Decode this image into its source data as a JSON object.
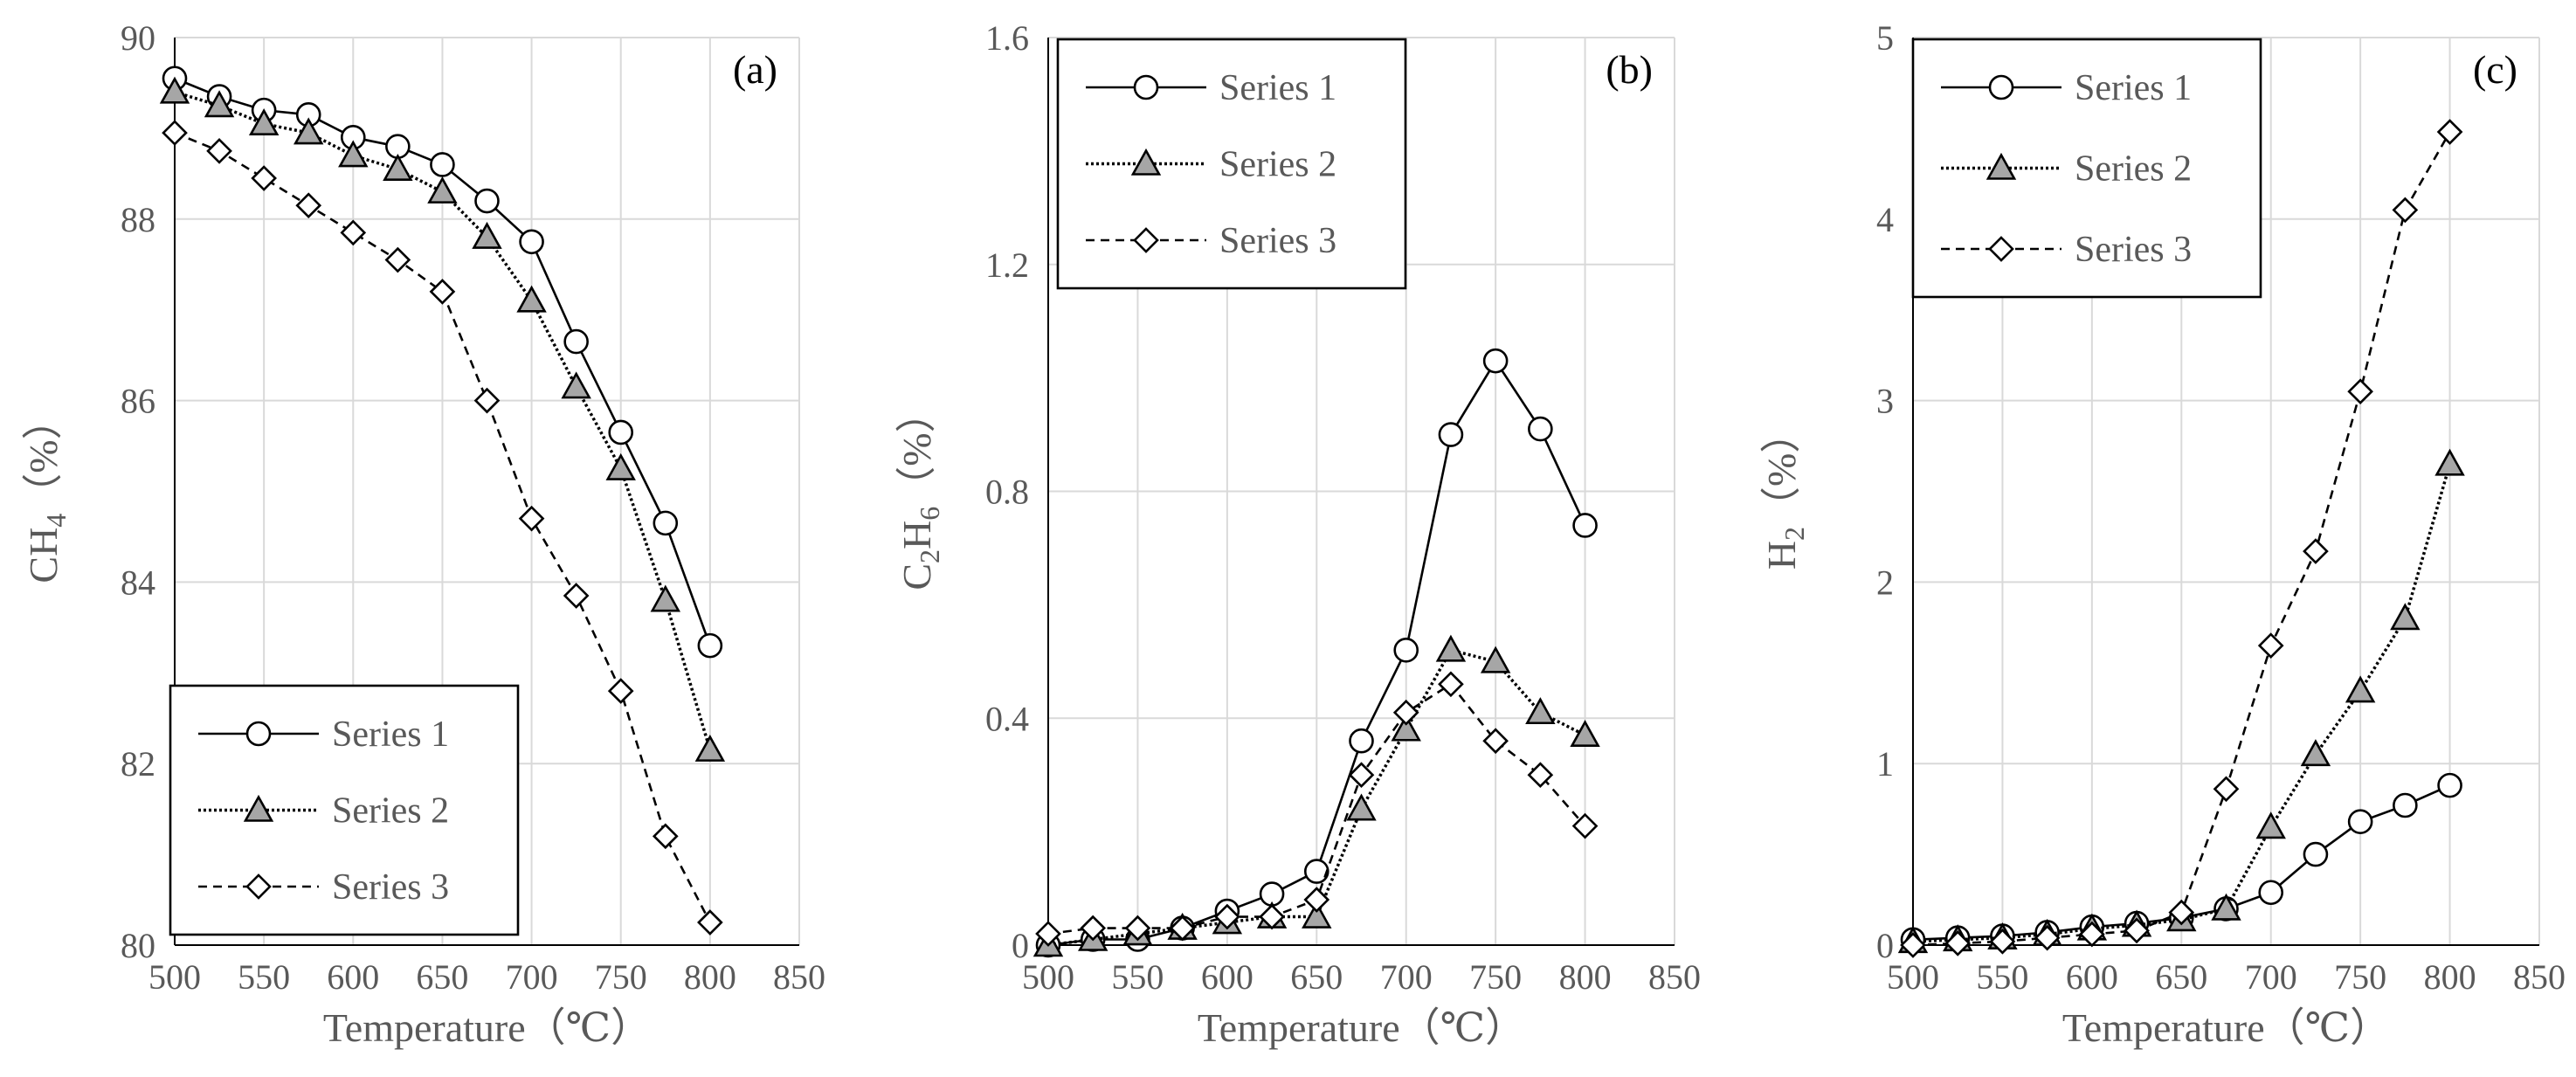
{
  "chart_data": [
    {
      "type": "line",
      "panel_label": "(a)",
      "xlabel": "Temperature（℃）",
      "ylabel": {
        "base": "CH",
        "sub": "4",
        "unit": "（%）"
      },
      "xlim": [
        500,
        850
      ],
      "xticks": [
        500,
        550,
        600,
        650,
        700,
        750,
        800,
        850
      ],
      "ylim": [
        80,
        90
      ],
      "yticks": [
        80,
        82,
        84,
        86,
        88,
        90
      ],
      "ytick_labels": [
        "80",
        "82",
        "84",
        "86",
        "88",
        "90"
      ],
      "grid": true,
      "legend_position": "bottom-left",
      "x": [
        500,
        525,
        550,
        575,
        600,
        625,
        650,
        675,
        700,
        725,
        750,
        775,
        800
      ],
      "series": [
        {
          "name": "Series 1",
          "marker": "circle",
          "line": "solid",
          "values": [
            89.55,
            89.35,
            89.2,
            89.15,
            88.9,
            88.8,
            88.6,
            88.2,
            87.75,
            86.65,
            85.65,
            84.65,
            83.3
          ]
        },
        {
          "name": "Series 2",
          "marker": "triangle",
          "line": "dotted",
          "values": [
            89.4,
            89.25,
            89.05,
            88.95,
            88.7,
            88.55,
            88.3,
            87.8,
            87.1,
            86.15,
            85.25,
            83.8,
            82.15
          ]
        },
        {
          "name": "Series 3",
          "marker": "diamond",
          "line": "dashed",
          "values": [
            88.95,
            88.75,
            88.45,
            88.15,
            87.85,
            87.55,
            87.2,
            86.0,
            84.7,
            83.85,
            82.8,
            81.2,
            80.25
          ]
        }
      ]
    },
    {
      "type": "line",
      "panel_label": "(b)",
      "xlabel": "Temperature（℃）",
      "ylabel": {
        "base": "C",
        "sub": "2",
        "mid": "H",
        "sub2": "6",
        "unit": "（%）"
      },
      "xlim": [
        500,
        850
      ],
      "xticks": [
        500,
        550,
        600,
        650,
        700,
        750,
        800,
        850
      ],
      "ylim": [
        0,
        1.6
      ],
      "yticks": [
        0,
        0.4,
        0.8,
        1.2,
        1.6
      ],
      "ytick_labels": [
        "0",
        "0.4",
        "0.8",
        "1.2",
        "1.6"
      ],
      "grid": true,
      "legend_position": "top-left",
      "x": [
        500,
        525,
        550,
        575,
        600,
        625,
        650,
        675,
        700,
        725,
        750,
        775,
        800
      ],
      "series": [
        {
          "name": "Series 1",
          "marker": "circle",
          "line": "solid",
          "values": [
            0.0,
            0.01,
            0.01,
            0.03,
            0.06,
            0.09,
            0.13,
            0.36,
            0.52,
            0.9,
            1.03,
            0.91,
            0.74
          ]
        },
        {
          "name": "Series 2",
          "marker": "triangle",
          "line": "dotted",
          "values": [
            0.0,
            0.01,
            0.02,
            0.03,
            0.04,
            0.05,
            0.05,
            0.24,
            0.38,
            0.52,
            0.5,
            0.41,
            0.37
          ]
        },
        {
          "name": "Series 3",
          "marker": "diamond",
          "line": "dashed",
          "values": [
            0.02,
            0.03,
            0.03,
            0.03,
            0.05,
            0.05,
            0.08,
            0.3,
            0.41,
            0.46,
            0.36,
            0.3,
            0.21
          ]
        }
      ]
    },
    {
      "type": "line",
      "panel_label": "(c)",
      "xlabel": "Temperature（℃）",
      "ylabel": {
        "base": "H",
        "sub": "2",
        "unit": "（%）"
      },
      "xlim": [
        500,
        850
      ],
      "xticks": [
        500,
        550,
        600,
        650,
        700,
        750,
        800,
        850
      ],
      "ylim": [
        0,
        5
      ],
      "yticks": [
        0,
        1,
        2,
        3,
        4,
        5
      ],
      "ytick_labels": [
        "0",
        "1",
        "2",
        "3",
        "4",
        "5"
      ],
      "grid": true,
      "legend_position": "top-left",
      "x": [
        500,
        525,
        550,
        575,
        600,
        625,
        650,
        675,
        700,
        725,
        750,
        775,
        800
      ],
      "series": [
        {
          "name": "Series 1",
          "marker": "circle",
          "line": "solid",
          "values": [
            0.03,
            0.04,
            0.05,
            0.07,
            0.1,
            0.12,
            0.15,
            0.2,
            0.29,
            0.5,
            0.68,
            0.77,
            0.88
          ]
        },
        {
          "name": "Series 2",
          "marker": "triangle",
          "line": "dotted",
          "values": [
            0.02,
            0.03,
            0.04,
            0.06,
            0.09,
            0.11,
            0.14,
            0.2,
            0.65,
            1.05,
            1.4,
            1.8,
            2.65
          ]
        },
        {
          "name": "Series 3",
          "marker": "diamond",
          "line": "dashed",
          "values": [
            0.0,
            0.01,
            0.02,
            0.04,
            0.06,
            0.08,
            0.18,
            0.86,
            1.65,
            2.17,
            3.05,
            4.05,
            4.48
          ]
        }
      ]
    }
  ]
}
